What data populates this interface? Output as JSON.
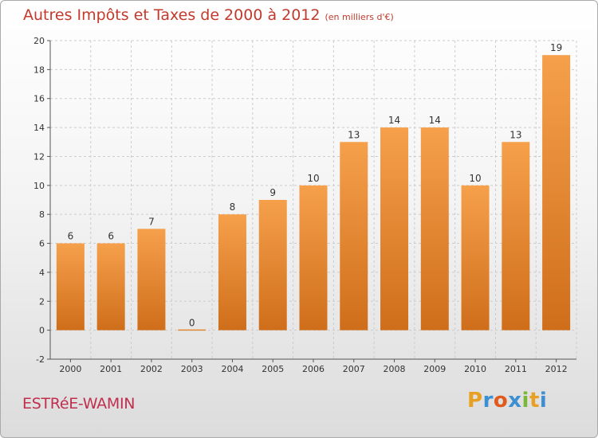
{
  "header": {
    "title": "Autres Impôts et Taxes de 2000 à 2012",
    "unit_label": "(en milliers d'€)"
  },
  "footer": {
    "commune": "ESTRéE-WAMIN",
    "logo": {
      "text": "Proxiti",
      "letters": [
        {
          "char": "P",
          "color": "#e8a024"
        },
        {
          "char": "r",
          "color": "#3c8fd0"
        },
        {
          "char": "o",
          "color": "#e05a1c"
        },
        {
          "char": "x",
          "color": "#3c8fd0"
        },
        {
          "char": "i",
          "color": "#7cb838"
        },
        {
          "char": "t",
          "color": "#e8a024"
        },
        {
          "char": "i",
          "color": "#3c8fd0"
        }
      ]
    }
  },
  "colors": {
    "title": "#c23a2c",
    "bar_top": "#f6a04c",
    "bar_bottom": "#cf6e1a",
    "grid": "#cccccc"
  },
  "chart_data": {
    "type": "bar",
    "title": "Autres Impôts et Taxes de 2000 à 2012",
    "ylabel": "",
    "xlabel": "",
    "categories": [
      "2000",
      "2001",
      "2002",
      "2003",
      "2004",
      "2005",
      "2006",
      "2007",
      "2008",
      "2009",
      "2010",
      "2011",
      "2012"
    ],
    "values": [
      6,
      6,
      7,
      0,
      8,
      9,
      10,
      13,
      14,
      14,
      10,
      13,
      19
    ],
    "ylim": [
      -2,
      20
    ],
    "yticks": [
      -2,
      0,
      2,
      4,
      6,
      8,
      10,
      12,
      14,
      16,
      18,
      20
    ],
    "grid": "horizontal dashed"
  }
}
